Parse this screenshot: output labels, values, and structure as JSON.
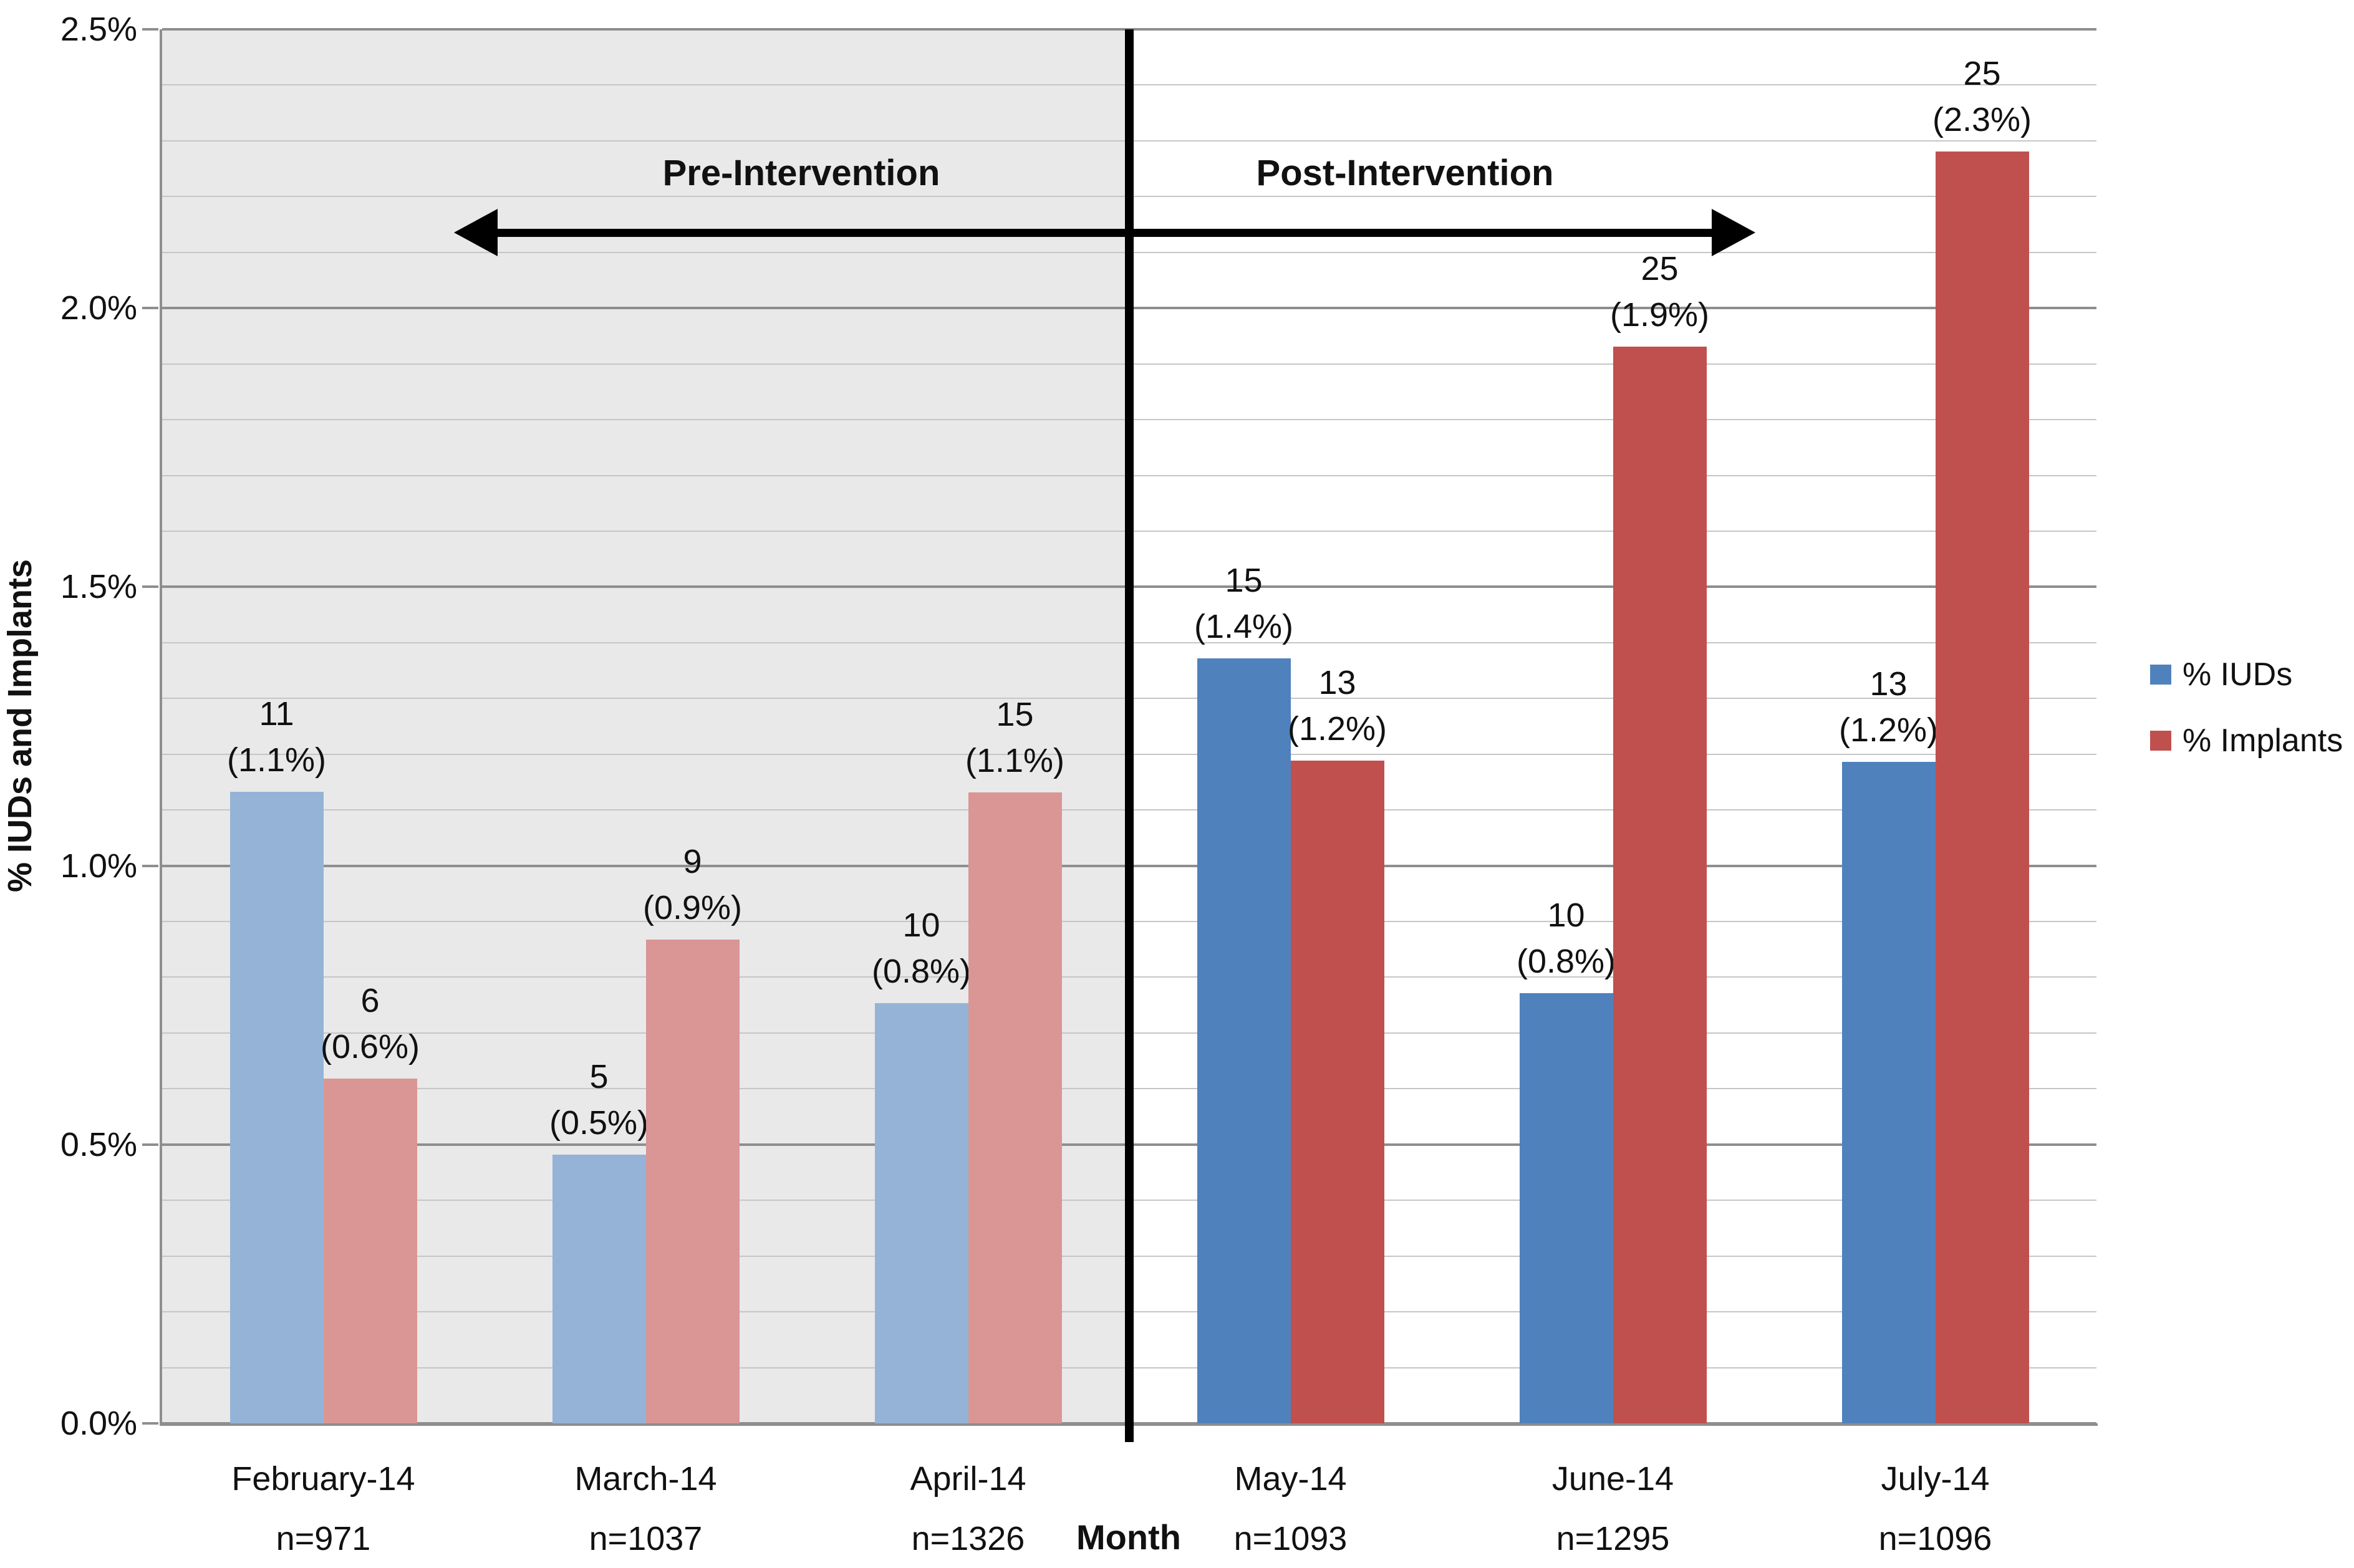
{
  "chart_data": {
    "type": "bar",
    "title": "",
    "xlabel": "Month",
    "ylabel": "% IUDs and Implants",
    "ylim": [
      0,
      2.5
    ],
    "y_minor_step": 0.1,
    "y_major_step": 0.5,
    "ytick_labels": [
      "0.0%",
      "0.5%",
      "1.0%",
      "1.5%",
      "2.0%",
      "2.5%"
    ],
    "grid": "on",
    "legend_position": "right-middle",
    "categories": [
      "February-14",
      "March-14",
      "April-14",
      "May-14",
      "June-14",
      "July-14"
    ],
    "n_labels": [
      "n=971",
      "n=1037",
      "n=1326",
      "n=1093",
      "n=1295",
      "n=1096"
    ],
    "regions": [
      {
        "name": "Pre-Intervention",
        "category_span": [
          0,
          2
        ],
        "shaded": true,
        "bg": "#e9e9e9",
        "arrow_direction": "left"
      },
      {
        "name": "Post-Intervention",
        "category_span": [
          3,
          5
        ],
        "shaded": false,
        "bg": "#ffffff",
        "arrow_direction": "right"
      }
    ],
    "series": [
      {
        "name": "% IUDs",
        "color_post": "#4f81bd",
        "color_pre": "#95b3d7",
        "points": [
          {
            "count": 11,
            "pct": 1.133,
            "pct_label": "(1.1%)"
          },
          {
            "count": 5,
            "pct": 0.482,
            "pct_label": "(0.5%)"
          },
          {
            "count": 10,
            "pct": 0.754,
            "pct_label": "(0.8%)"
          },
          {
            "count": 15,
            "pct": 1.372,
            "pct_label": "(1.4%)"
          },
          {
            "count": 10,
            "pct": 0.772,
            "pct_label": "(0.8%)"
          },
          {
            "count": 13,
            "pct": 1.186,
            "pct_label": "(1.2%)"
          }
        ]
      },
      {
        "name": "% Implants",
        "color_post": "#c0504d",
        "color_pre": "#d99694",
        "points": [
          {
            "count": 6,
            "pct": 0.618,
            "pct_label": "(0.6%)"
          },
          {
            "count": 9,
            "pct": 0.868,
            "pct_label": "(0.9%)"
          },
          {
            "count": 15,
            "pct": 1.131,
            "pct_label": "(1.1%)"
          },
          {
            "count": 13,
            "pct": 1.189,
            "pct_label": "(1.2%)"
          },
          {
            "count": 25,
            "pct": 1.931,
            "pct_label": "(1.9%)"
          },
          {
            "count": 25,
            "pct": 2.281,
            "pct_label": "(2.3%)"
          }
        ]
      }
    ],
    "colors": {
      "minor_grid": "#c6c6c6",
      "major_grid": "#8e8e8e",
      "axis": "#8e8e8e",
      "divider": "#000000",
      "text": "#111111"
    }
  }
}
